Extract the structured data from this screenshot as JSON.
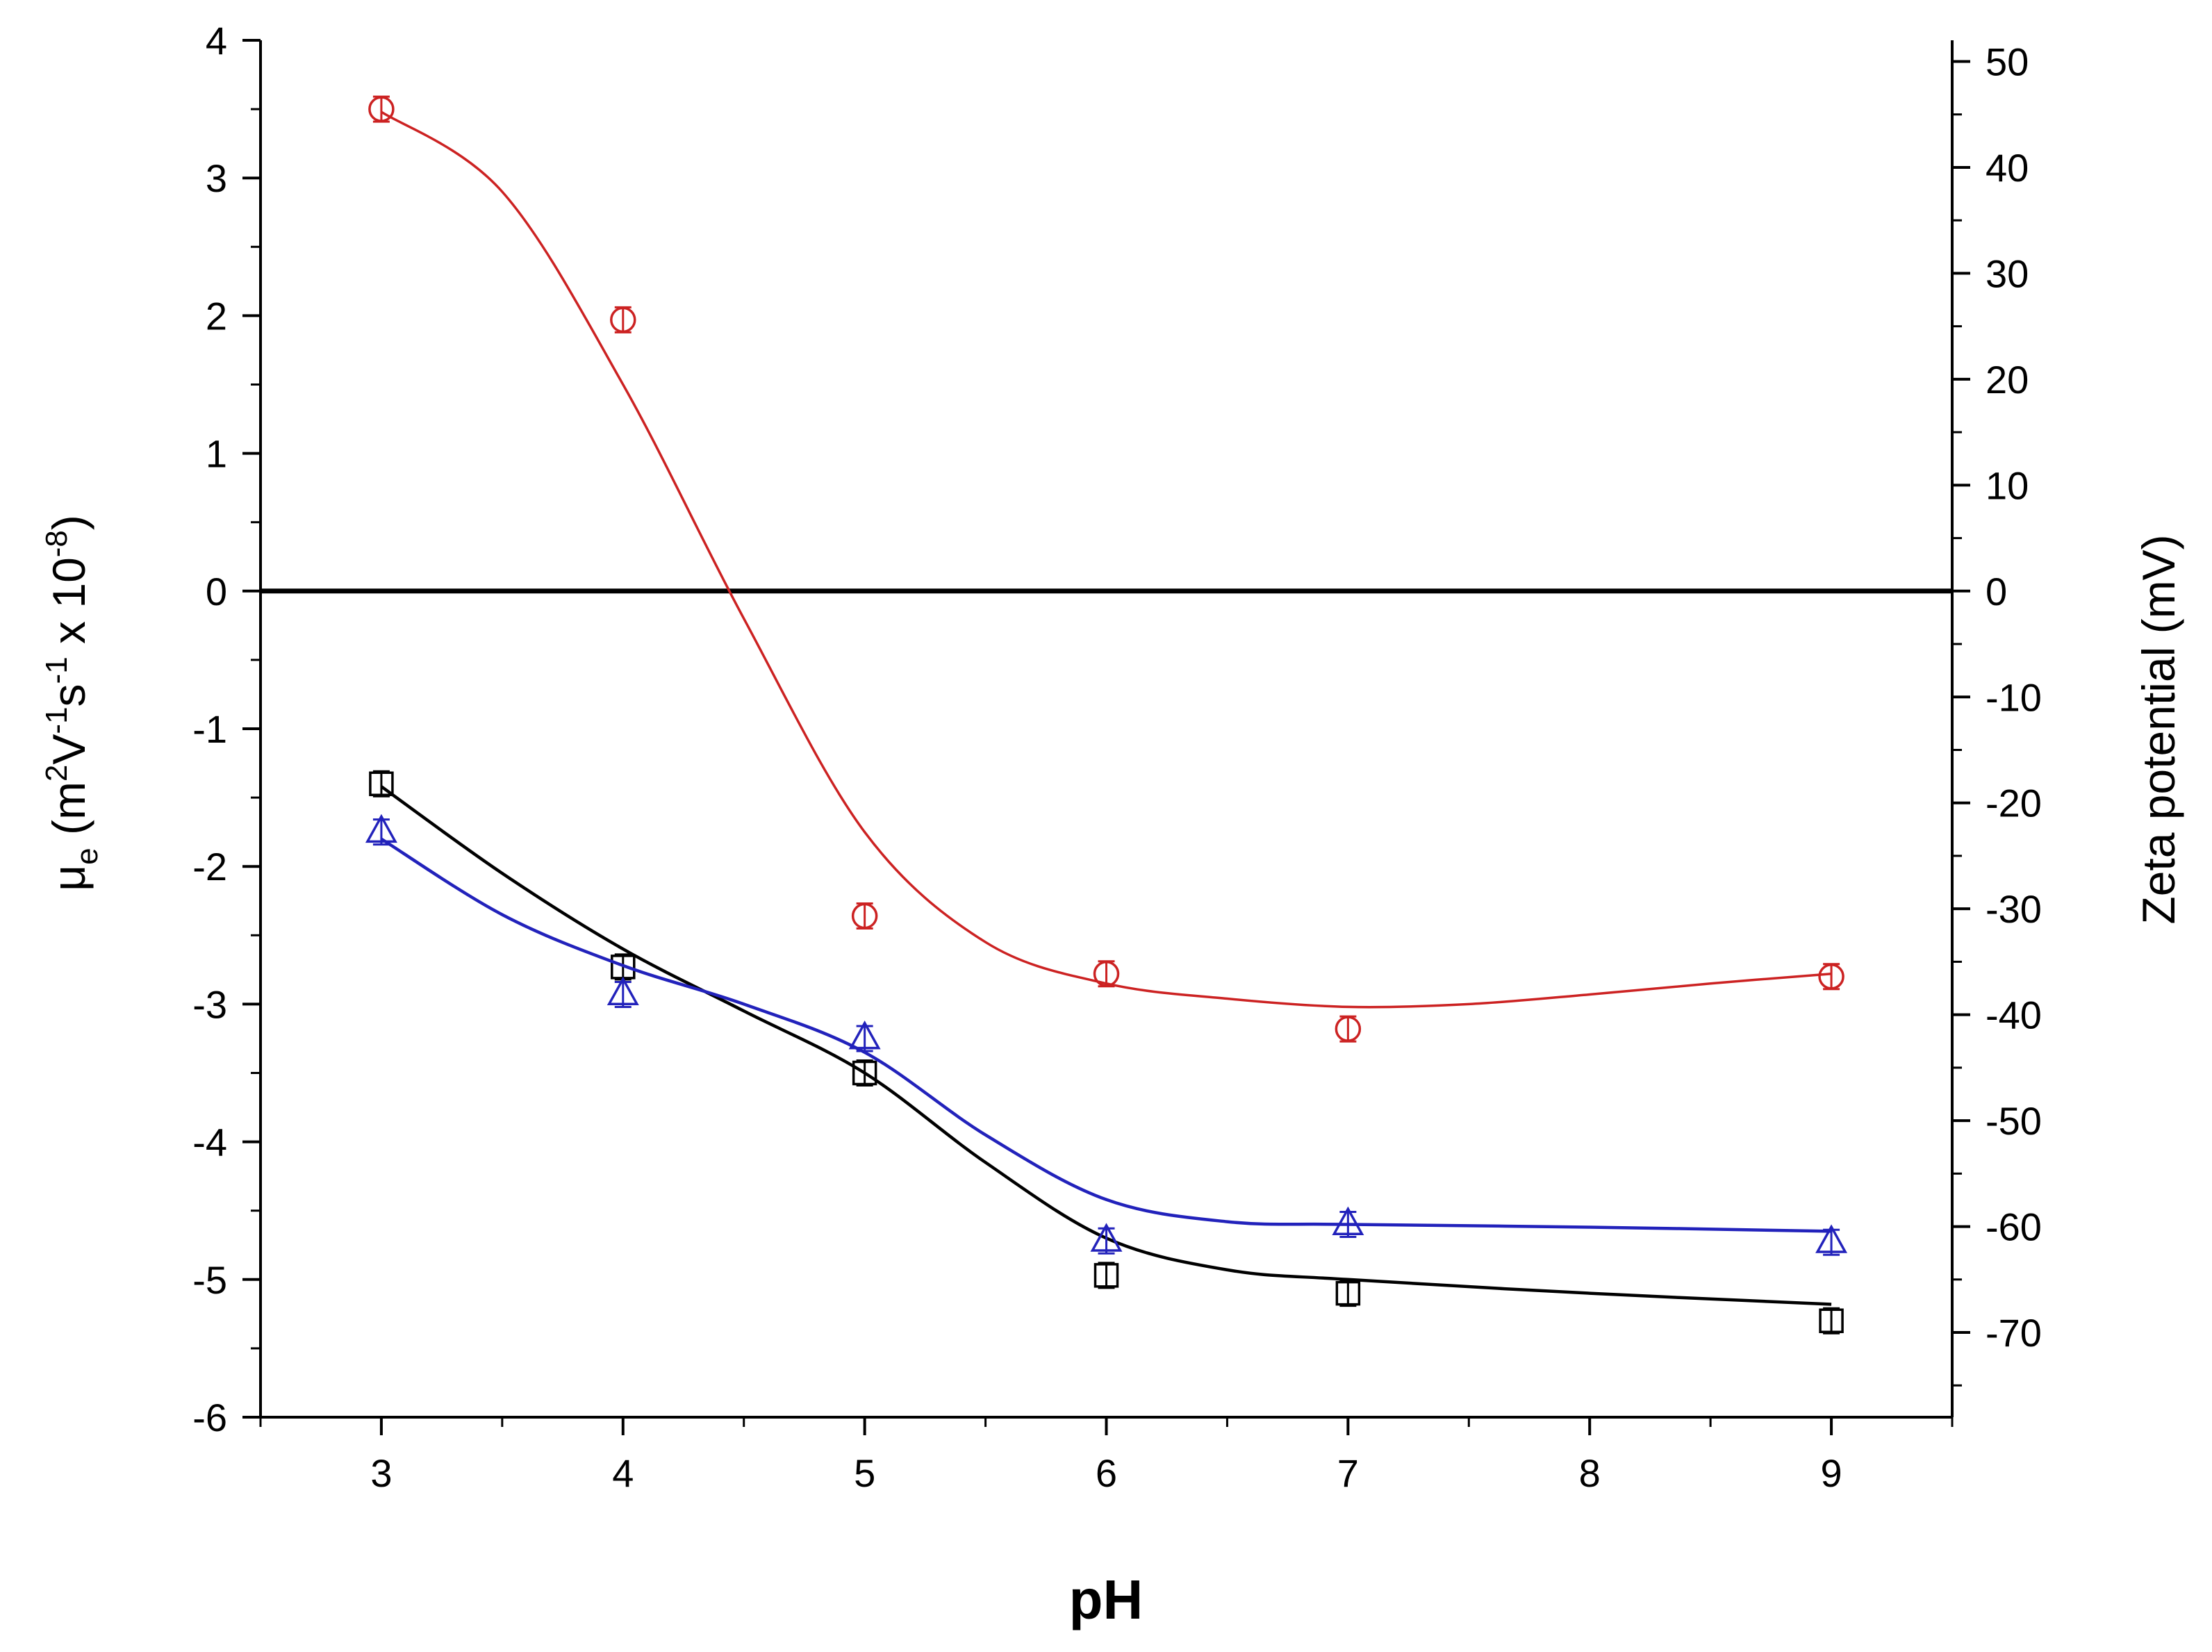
{
  "chart_data": {
    "type": "scatter",
    "title": "",
    "xlabel": "pH",
    "ylabel": {
      "mu": "μ",
      "sub": "e",
      "open": " (m",
      "sup1": "2",
      "v": "V",
      "sup2": "-1",
      "s": "s",
      "sup3": "-1",
      "times": " x 10",
      "sup4": "-8",
      "close": ")"
    },
    "y2label": "Zeta potential (mV)",
    "xlim": [
      2.5,
      9.5
    ],
    "ylim": [
      -6,
      4
    ],
    "y2lim": [
      -78,
      52
    ],
    "x_ticks": [
      3,
      4,
      5,
      6,
      7,
      8,
      9
    ],
    "y_ticks": [
      -6,
      -5,
      -4,
      -3,
      -2,
      -1,
      0,
      1,
      2,
      3,
      4
    ],
    "y2_ticks": [
      -70,
      -60,
      -50,
      -40,
      -30,
      -20,
      -10,
      0,
      10,
      20,
      30,
      40,
      50
    ],
    "reference_line": {
      "y": 0
    },
    "grid": false,
    "series": [
      {
        "name": "red-circles",
        "color": "#cc2222",
        "marker": "circle",
        "x": [
          3,
          4,
          5,
          6,
          7,
          9
        ],
        "y": [
          3.5,
          1.97,
          -2.36,
          -2.78,
          -3.18,
          -2.8
        ],
        "fit": [
          [
            3,
            3.48
          ],
          [
            3.5,
            2.9
          ],
          [
            4,
            1.5
          ],
          [
            4.5,
            -0.2
          ],
          [
            5,
            -1.75
          ],
          [
            5.5,
            -2.55
          ],
          [
            6,
            -2.85
          ],
          [
            6.5,
            -2.96
          ],
          [
            7,
            -3.02
          ],
          [
            7.5,
            -3.0
          ],
          [
            8,
            -2.93
          ],
          [
            8.5,
            -2.85
          ],
          [
            9,
            -2.78
          ]
        ]
      },
      {
        "name": "black-squares",
        "color": "#000000",
        "marker": "square",
        "x": [
          3,
          4,
          5,
          6,
          7,
          9
        ],
        "y": [
          -1.4,
          -2.73,
          -3.5,
          -4.97,
          -5.1,
          -5.3
        ],
        "fit": [
          [
            3,
            -1.42
          ],
          [
            3.5,
            -2.05
          ],
          [
            4,
            -2.6
          ],
          [
            4.5,
            -3.05
          ],
          [
            5,
            -3.5
          ],
          [
            5.5,
            -4.15
          ],
          [
            6,
            -4.7
          ],
          [
            6.5,
            -4.93
          ],
          [
            7,
            -5.0
          ],
          [
            8,
            -5.1
          ],
          [
            9,
            -5.18
          ]
        ]
      },
      {
        "name": "blue-triangles",
        "color": "#2222bb",
        "marker": "triangle",
        "x": [
          3,
          4,
          5,
          6,
          7,
          9
        ],
        "y": [
          -1.75,
          -2.93,
          -3.25,
          -4.72,
          -4.6,
          -4.73
        ],
        "fit": [
          [
            3,
            -1.8
          ],
          [
            3.5,
            -2.35
          ],
          [
            4,
            -2.72
          ],
          [
            4.5,
            -3.0
          ],
          [
            5,
            -3.35
          ],
          [
            5.5,
            -3.95
          ],
          [
            6,
            -4.42
          ],
          [
            6.5,
            -4.58
          ],
          [
            7,
            -4.6
          ],
          [
            8,
            -4.62
          ],
          [
            9,
            -4.65
          ]
        ]
      }
    ]
  }
}
